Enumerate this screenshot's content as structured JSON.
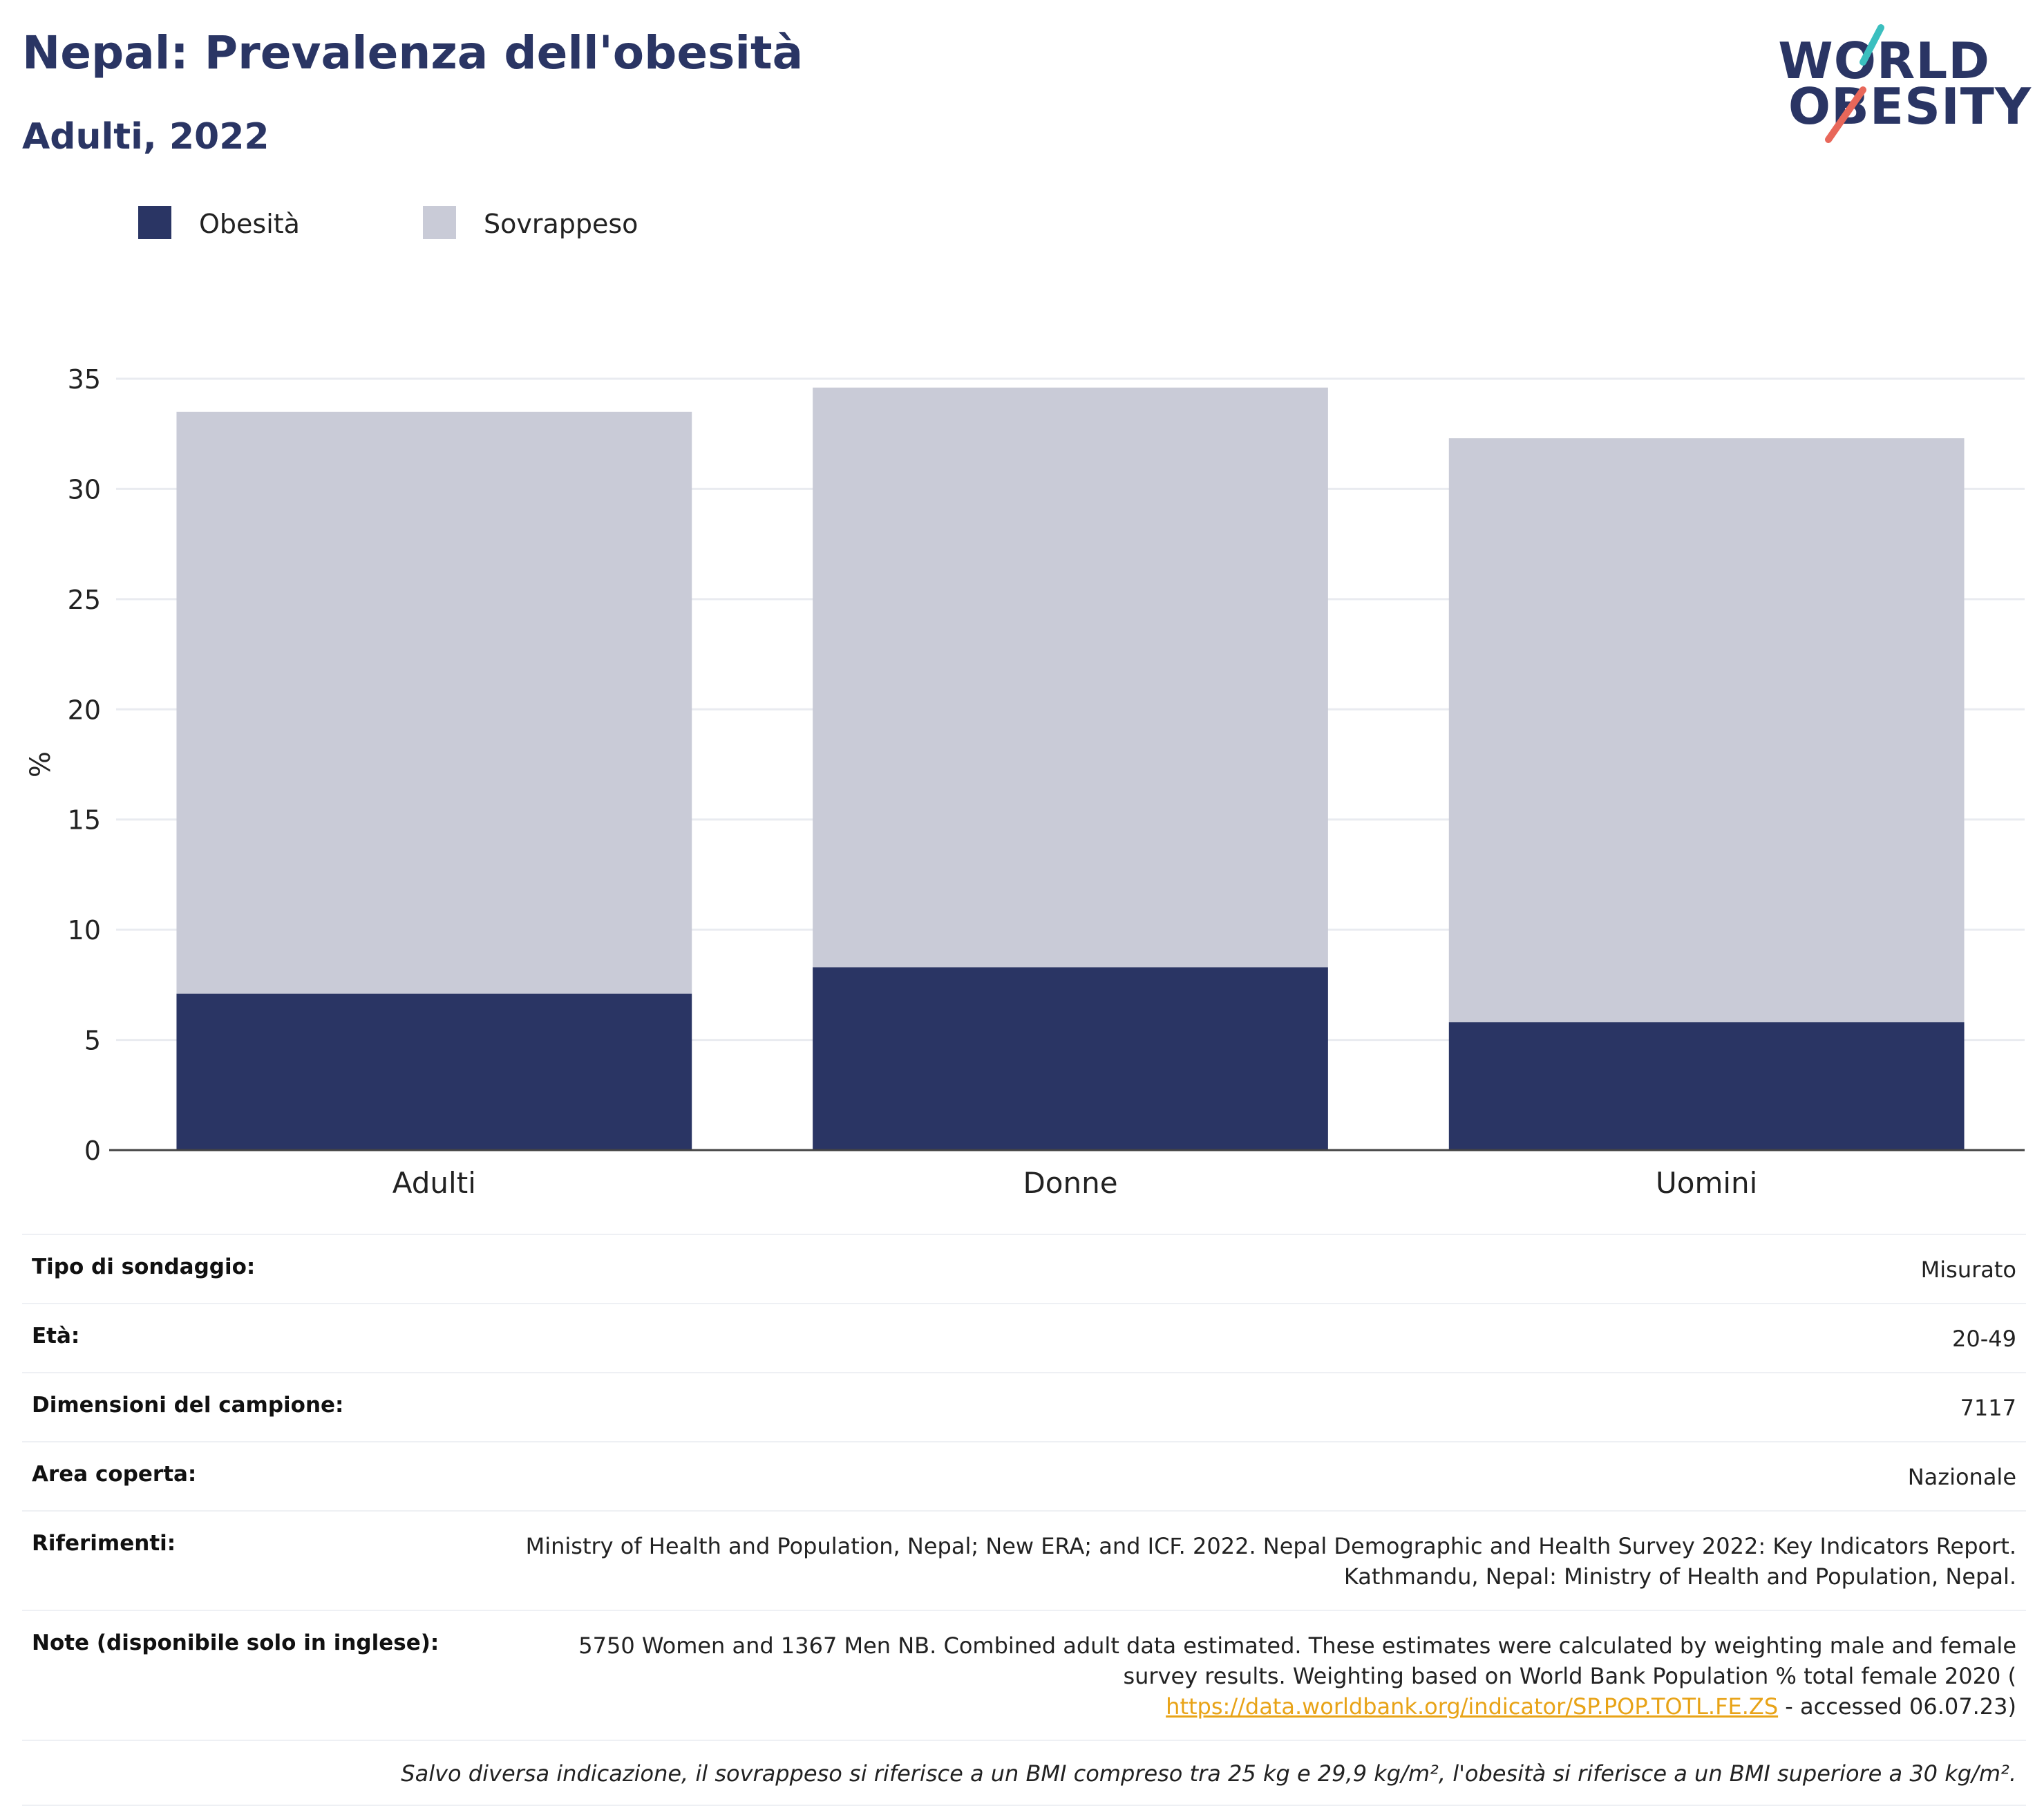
{
  "header": {
    "title": "Nepal: Prevalenza dell'obesità",
    "subtitle": "Adulti, 2022",
    "logo_line1": "WORLD",
    "logo_line2": "OBESITY"
  },
  "colors": {
    "navy": "#2a3564",
    "light": "#c9cbd7",
    "teal_accent": "#3bbfbf",
    "red_accent": "#e8675a",
    "link": "#e8a317"
  },
  "legend": [
    {
      "label": "Obesità",
      "color": "#2a3564"
    },
    {
      "label": "Sovrappeso",
      "color": "#c9cbd7"
    }
  ],
  "chart_data": {
    "type": "bar",
    "stacked": true,
    "categories": [
      "Adulti",
      "Donne",
      "Uomini"
    ],
    "series": [
      {
        "name": "Obesità",
        "values": [
          7.1,
          8.3,
          5.8
        ],
        "color": "#2a3564"
      },
      {
        "name": "Sovrappeso",
        "values": [
          26.4,
          26.3,
          26.5
        ],
        "color": "#c9cbd7"
      }
    ],
    "totals": [
      33.5,
      34.6,
      32.3
    ],
    "ylabel": "%",
    "ylim": [
      0,
      35
    ],
    "yticks": [
      0,
      5,
      10,
      15,
      20,
      25,
      30,
      35
    ],
    "grid": true,
    "legend_position": "top-left"
  },
  "info": {
    "survey_key": "Tipo di sondaggio:",
    "survey_val": "Misurato",
    "age_key": "Età:",
    "age_val": "20-49",
    "sample_key": "Dimensioni del campione:",
    "sample_val": "7117",
    "area_key": "Area coperta:",
    "area_val": "Nazionale",
    "ref_key": "Riferimenti:",
    "ref_line1": "Ministry of Health and Population, Nepal; New ERA; and ICF. 2022. Nepal Demographic and Health Survey 2022: Key Indicators Report.",
    "ref_line2": "Kathmandu, Nepal: Ministry of Health and Population, Nepal.",
    "notes_key": "Note (disponibile solo in inglese):",
    "notes_line1": "5750 Women and 1367 Men NB. Combined adult data estimated. These estimates were calculated by weighting male and female",
    "notes_line2": "survey results. Weighting based on World Bank Population % total female 2020 (",
    "notes_link": "https://data.worldbank.org/indicator/SP.POP.TOTL.FE.ZS",
    "notes_after_link": " - accessed 06.07.23)",
    "footnote": "Salvo diversa indicazione, il sovrappeso si riferisce a un BMI compreso tra 25 kg e 29,9 kg/m², l'obesità si riferisce a un BMI superiore a 30 kg/m²."
  }
}
